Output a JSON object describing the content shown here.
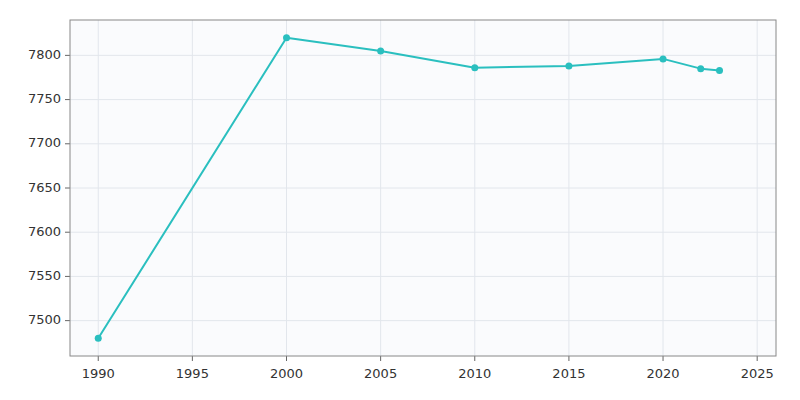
{
  "chart_data": {
    "type": "line",
    "x": [
      1990,
      2000,
      2005,
      2010,
      2015,
      2020,
      2022,
      2023
    ],
    "values": [
      7480,
      7820,
      7805,
      7786,
      7788,
      7796,
      7785,
      7783
    ],
    "color": "#2abfbf",
    "marker": "circle",
    "xlim": [
      1988.5,
      2026
    ],
    "ylim": [
      7460,
      7840
    ],
    "xticks": [
      1990,
      1995,
      2000,
      2005,
      2010,
      2015,
      2020,
      2025
    ],
    "yticks": [
      7500,
      7550,
      7600,
      7650,
      7700,
      7750,
      7800
    ],
    "grid": true
  }
}
